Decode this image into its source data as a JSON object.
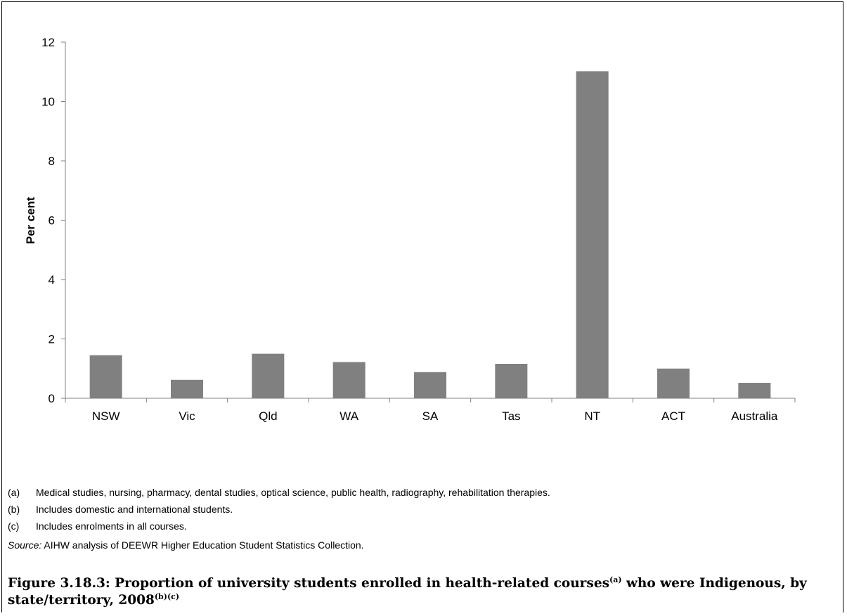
{
  "chart_data": {
    "type": "bar",
    "categories": [
      "NSW",
      "Vic",
      "Qld",
      "WA",
      "SA",
      "Tas",
      "NT",
      "ACT",
      "Australia"
    ],
    "values": [
      1.45,
      0.62,
      1.5,
      1.22,
      0.88,
      1.16,
      11.02,
      1.0,
      0.52
    ],
    "ylabel": "Per cent",
    "xlabel": "",
    "ylim": [
      0,
      12
    ],
    "yticks": [
      0,
      2,
      4,
      6,
      8,
      10,
      12
    ],
    "bar_color": "#808080",
    "grid": false,
    "legend": "none"
  },
  "notes": [
    {
      "key": "(a)",
      "text": "Medical studies, nursing, pharmacy, dental studies, optical science, public health, radiography, rehabilitation therapies."
    },
    {
      "key": "(b)",
      "text": "Includes domestic and international students."
    },
    {
      "key": "(c)",
      "text": "Includes enrolments in all courses."
    }
  ],
  "source": {
    "label": "Source:",
    "text": " AIHW analysis of DEEWR Higher Education Student Statistics Collection."
  },
  "caption": {
    "part1": "Figure 3.18.3: Proportion of university students enrolled in health-related courses",
    "sup1": "(a)",
    "part2": " who were Indigenous, by state/territory, 2008",
    "sup2": "(b)(c)"
  }
}
